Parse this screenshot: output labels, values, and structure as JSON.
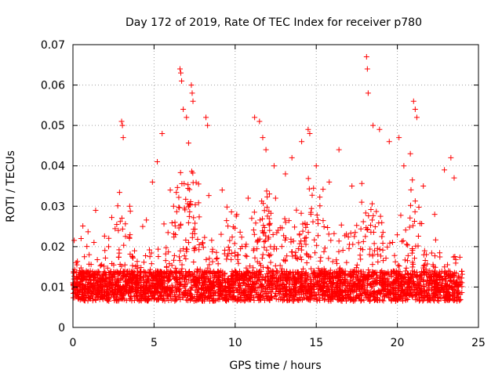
{
  "chart_data": {
    "type": "scatter",
    "title": "Day 172 of 2019, Rate Of TEC Index for receiver p780",
    "xlabel": "GPS time / hours",
    "ylabel": "ROTI / TECUs",
    "xlim": [
      0,
      25
    ],
    "ylim": [
      0,
      0.07
    ],
    "xticks": [
      0,
      5,
      10,
      15,
      20,
      25
    ],
    "xtick_labels": [
      "0",
      "5",
      "10",
      "15",
      "20",
      "25"
    ],
    "yticks": [
      0,
      0.01,
      0.02,
      0.03,
      0.04,
      0.05,
      0.06,
      0.07
    ],
    "ytick_labels": [
      "0",
      "0.01",
      "0.02",
      "0.03",
      "0.04",
      "0.05",
      "0.06",
      "0.07"
    ],
    "grid": true,
    "marker": "+",
    "color": "#ff0000",
    "data_range_x": [
      0,
      24
    ],
    "series": [
      {
        "name": "ROTI",
        "note": "dense band ~0.005-0.02 over 0-24 h; representative peak points listed",
        "x": [
          0.2,
          0.5,
          1.0,
          1.4,
          2.2,
          2.8,
          3.0,
          3.05,
          3.1,
          3.5,
          4.3,
          4.9,
          5.2,
          5.5,
          6.0,
          6.6,
          6.65,
          6.7,
          6.8,
          7.0,
          7.3,
          7.35,
          7.4,
          8.2,
          8.3,
          9.2,
          10.1,
          10.8,
          11.2,
          11.5,
          11.7,
          11.9,
          12.4,
          13.1,
          13.5,
          14.1,
          14.5,
          14.6,
          15.0,
          15.8,
          16.4,
          17.2,
          17.8,
          18.1,
          18.15,
          18.2,
          18.5,
          18.9,
          19.5,
          20.1,
          20.4,
          20.8,
          21.0,
          21.1,
          21.2,
          21.6,
          22.3,
          22.9,
          23.3,
          23.5
        ],
        "y": [
          0.016,
          0.022,
          0.018,
          0.029,
          0.02,
          0.024,
          0.051,
          0.05,
          0.047,
          0.03,
          0.025,
          0.036,
          0.041,
          0.048,
          0.034,
          0.064,
          0.063,
          0.061,
          0.054,
          0.052,
          0.06,
          0.058,
          0.056,
          0.052,
          0.05,
          0.034,
          0.028,
          0.032,
          0.052,
          0.051,
          0.047,
          0.044,
          0.04,
          0.038,
          0.042,
          0.046,
          0.049,
          0.048,
          0.04,
          0.036,
          0.044,
          0.035,
          0.031,
          0.067,
          0.064,
          0.058,
          0.05,
          0.049,
          0.046,
          0.047,
          0.04,
          0.043,
          0.056,
          0.054,
          0.052,
          0.035,
          0.028,
          0.039,
          0.042,
          0.037
        ]
      }
    ]
  }
}
